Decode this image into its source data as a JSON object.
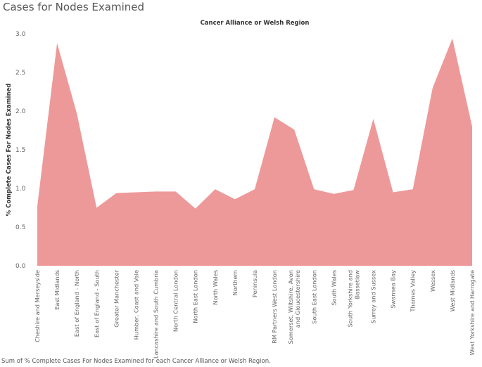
{
  "page": {
    "title": "Cases for Nodes Examined",
    "caption": "Sum of % Complete Cases For Nodes Examined for each Cancer Alliance or Welsh Region."
  },
  "chart_data": {
    "type": "area",
    "title": "Cases for Nodes Examined",
    "xlabel": "Cancer Alliance or Welsh Region",
    "ylabel": "% Complete Cases For Nodes Examined",
    "ylim": [
      0,
      3.0
    ],
    "yticks": [
      "0.0",
      "0.5",
      "1.0",
      "1.5",
      "2.0",
      "2.5",
      "3.0"
    ],
    "color": "#ee9999",
    "grid": false,
    "categories": [
      [
        "Cheshire and Merseyside"
      ],
      [
        "East Midlands"
      ],
      [
        "East of England - North"
      ],
      [
        "East of England - South"
      ],
      [
        "Greater Manchester"
      ],
      [
        "Humber, Coast and Vale"
      ],
      [
        "Lancashire and South Cumbria"
      ],
      [
        "North Central London"
      ],
      [
        "North East London"
      ],
      [
        "North Wales"
      ],
      [
        "Northern"
      ],
      [
        "Peninsula"
      ],
      [
        "RM Partners West London"
      ],
      [
        "Somerset, Wiltshire, Avon",
        "and Gloucestershire"
      ],
      [
        "South East London"
      ],
      [
        "South Wales"
      ],
      [
        "South Yorkshire and",
        "Bassetlaw"
      ],
      [
        "Surrey and Sussex"
      ],
      [
        "Swansea Bay"
      ],
      [
        "Thames Valley"
      ],
      [
        "Wessex"
      ],
      [
        "West Midlands"
      ],
      [
        "West Yorkshire and Harrogate"
      ]
    ],
    "values": [
      0.77,
      2.88,
      1.97,
      0.75,
      0.94,
      0.95,
      0.96,
      0.96,
      0.74,
      0.99,
      0.86,
      0.99,
      1.92,
      1.76,
      0.99,
      0.93,
      0.98,
      1.9,
      0.95,
      0.99,
      2.3,
      2.94,
      1.8
    ]
  }
}
